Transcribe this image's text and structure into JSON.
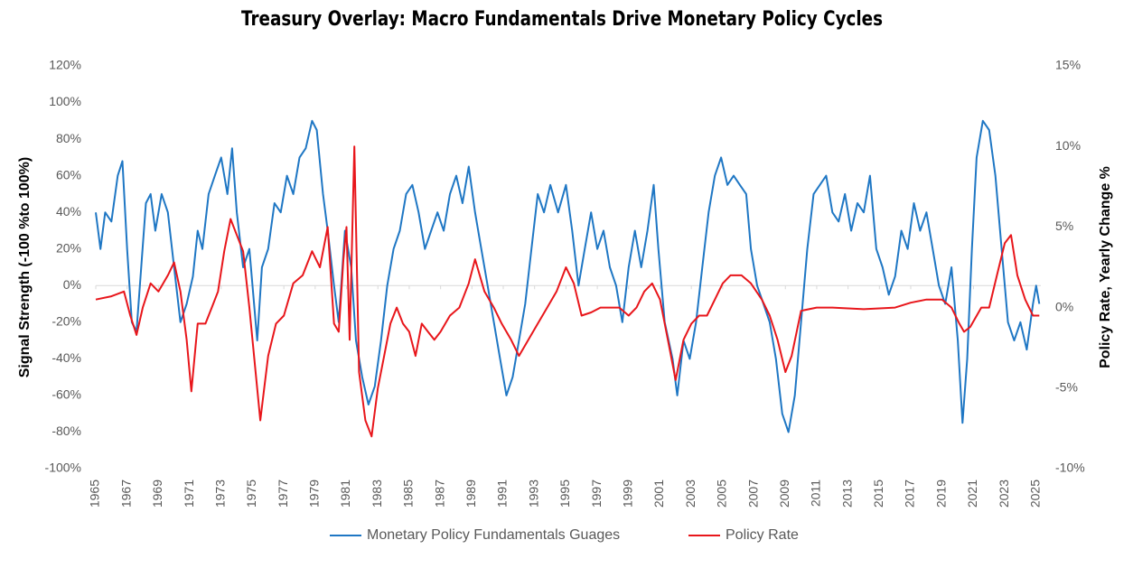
{
  "chart_data": {
    "type": "line",
    "title": "Treasury Overlay: Macro Fundamentals Drive Monetary Policy Cycles",
    "ylabel": "Signal Strength (-100 %to 100%)",
    "y2label": "Policy Rate, Yearly Change %",
    "xlim": [
      1965,
      2025.3
    ],
    "xticks": [
      1965,
      1967,
      1969,
      1971,
      1973,
      1975,
      1977,
      1979,
      1981,
      1983,
      1985,
      1987,
      1989,
      1991,
      1993,
      1995,
      1997,
      1999,
      2001,
      2003,
      2005,
      2007,
      2009,
      2011,
      2013,
      2015,
      2017,
      2019,
      2021,
      2023,
      2025
    ],
    "ylim": [
      -100,
      120
    ],
    "yticks": [
      {
        "value": -100,
        "label": "-100%"
      },
      {
        "value": -80,
        "label": "-80%"
      },
      {
        "value": -60,
        "label": "-60%"
      },
      {
        "value": -40,
        "label": "-40%"
      },
      {
        "value": -20,
        "label": "-20%"
      },
      {
        "value": 0,
        "label": "0%"
      },
      {
        "value": 20,
        "label": "20%"
      },
      {
        "value": 40,
        "label": "40%"
      },
      {
        "value": 60,
        "label": "60%"
      },
      {
        "value": 80,
        "label": "80%"
      },
      {
        "value": 100,
        "label": "100%"
      },
      {
        "value": 120,
        "label": "120%"
      }
    ],
    "y2lim": [
      -10,
      15
    ],
    "y2ticks": [
      {
        "value": -10,
        "label": "-10%"
      },
      {
        "value": -5,
        "label": "-5%"
      },
      {
        "value": 0,
        "label": "0%"
      },
      {
        "value": 5,
        "label": "5%"
      },
      {
        "value": 10,
        "label": "10%"
      },
      {
        "value": 15,
        "label": "15%"
      }
    ],
    "grid": false,
    "legend": "bottom",
    "series": [
      {
        "name": "Monetary Policy Fundamentals Guages",
        "color": "#1f77c4",
        "axis": "y",
        "x": [
          1965.0,
          1965.3,
          1965.6,
          1966.0,
          1966.4,
          1966.7,
          1967.0,
          1967.3,
          1967.6,
          1967.9,
          1968.2,
          1968.5,
          1968.8,
          1969.2,
          1969.6,
          1970.0,
          1970.4,
          1970.8,
          1971.2,
          1971.5,
          1971.8,
          1972.2,
          1972.6,
          1973.0,
          1973.4,
          1973.7,
          1974.0,
          1974.4,
          1974.8,
          1975.1,
          1975.3,
          1975.6,
          1976.0,
          1976.4,
          1976.8,
          1977.2,
          1977.6,
          1978.0,
          1978.4,
          1978.8,
          1979.1,
          1979.5,
          1979.8,
          1980.2,
          1980.5,
          1980.9,
          1981.3,
          1981.6,
          1982.0,
          1982.4,
          1982.8,
          1983.2,
          1983.6,
          1984.0,
          1984.4,
          1984.8,
          1985.2,
          1985.6,
          1986.0,
          1986.4,
          1986.8,
          1987.2,
          1987.6,
          1988.0,
          1988.4,
          1988.8,
          1989.2,
          1989.6,
          1990.0,
          1990.4,
          1990.8,
          1991.2,
          1991.6,
          1992.0,
          1992.4,
          1992.8,
          1993.2,
          1993.6,
          1994.0,
          1994.5,
          1995.0,
          1995.4,
          1995.8,
          1996.2,
          1996.6,
          1997.0,
          1997.4,
          1997.8,
          1998.2,
          1998.6,
          1999.0,
          1999.4,
          1999.8,
          2000.2,
          2000.6,
          2000.9,
          2001.3,
          2001.8,
          2002.1,
          2002.5,
          2002.9,
          2003.3,
          2003.7,
          2004.1,
          2004.5,
          2004.9,
          2005.3,
          2005.7,
          2006.1,
          2006.5,
          2006.8,
          2007.2,
          2007.6,
          2008.0,
          2008.4,
          2008.8,
          2009.2,
          2009.6,
          2010.0,
          2010.4,
          2010.8,
          2011.2,
          2011.6,
          2012.0,
          2012.4,
          2012.8,
          2013.2,
          2013.6,
          2014.0,
          2014.4,
          2014.8,
          2015.2,
          2015.6,
          2016.0,
          2016.4,
          2016.8,
          2017.2,
          2017.6,
          2018.0,
          2018.4,
          2018.8,
          2019.2,
          2019.6,
          2020.0,
          2020.3,
          2020.6,
          2020.9,
          2021.2,
          2021.6,
          2022.0,
          2022.4,
          2022.8,
          2023.2,
          2023.6,
          2024.0,
          2024.4,
          2024.8,
          2025.0,
          2025.2
        ],
        "values": [
          40,
          20,
          40,
          35,
          60,
          68,
          20,
          -20,
          -25,
          10,
          45,
          50,
          30,
          50,
          40,
          10,
          -20,
          -10,
          5,
          30,
          20,
          50,
          60,
          70,
          50,
          75,
          40,
          10,
          20,
          -10,
          -30,
          10,
          20,
          45,
          40,
          60,
          50,
          70,
          75,
          90,
          85,
          50,
          30,
          0,
          -20,
          30,
          10,
          -30,
          -50,
          -65,
          -55,
          -30,
          0,
          20,
          30,
          50,
          55,
          40,
          20,
          30,
          40,
          30,
          50,
          60,
          45,
          65,
          40,
          20,
          0,
          -20,
          -40,
          -60,
          -50,
          -30,
          -10,
          20,
          50,
          40,
          55,
          40,
          55,
          30,
          0,
          20,
          40,
          20,
          30,
          10,
          0,
          -20,
          10,
          30,
          10,
          30,
          55,
          20,
          -20,
          -40,
          -60,
          -30,
          -40,
          -20,
          10,
          40,
          60,
          70,
          55,
          60,
          55,
          50,
          20,
          0,
          -10,
          -20,
          -40,
          -70,
          -80,
          -60,
          -20,
          20,
          50,
          55,
          60,
          40,
          35,
          50,
          30,
          45,
          40,
          60,
          20,
          10,
          -5,
          5,
          30,
          20,
          45,
          30,
          40,
          20,
          0,
          -10,
          10,
          -30,
          -75,
          -40,
          20,
          70,
          90,
          85,
          60,
          20,
          -20,
          -30,
          -20,
          -35,
          -10,
          0,
          -10
        ]
      },
      {
        "name": "Policy Rate",
        "color": "#e8161b",
        "axis": "y2",
        "x": [
          1965.0,
          1966.0,
          1966.8,
          1967.2,
          1967.6,
          1968.0,
          1968.5,
          1969.0,
          1969.6,
          1970.0,
          1970.4,
          1970.8,
          1971.1,
          1971.5,
          1972.0,
          1972.4,
          1972.8,
          1973.2,
          1973.6,
          1974.0,
          1974.4,
          1974.8,
          1975.2,
          1975.5,
          1976.0,
          1976.5,
          1977.0,
          1977.6,
          1978.2,
          1978.8,
          1979.3,
          1979.8,
          1980.2,
          1980.5,
          1980.8,
          1981.0,
          1981.2,
          1981.5,
          1981.8,
          1982.2,
          1982.6,
          1983.0,
          1983.4,
          1983.8,
          1984.2,
          1984.6,
          1985.0,
          1985.4,
          1985.8,
          1986.2,
          1986.6,
          1987.0,
          1987.6,
          1988.2,
          1988.8,
          1989.2,
          1989.8,
          1990.4,
          1990.9,
          1991.5,
          1992.0,
          1992.6,
          1993.2,
          1993.8,
          1994.4,
          1995.0,
          1995.5,
          1996.0,
          1996.6,
          1997.2,
          1997.8,
          1998.4,
          1999.0,
          1999.5,
          2000.0,
          2000.5,
          2001.0,
          2001.5,
          2002.0,
          2002.5,
          2003.0,
          2003.5,
          2004.0,
          2004.5,
          2005.0,
          2005.5,
          2006.2,
          2006.8,
          2007.5,
          2008.0,
          2008.5,
          2009.0,
          2009.4,
          2010.0,
          2011.0,
          2012.0,
          2014.0,
          2016.0,
          2017.0,
          2018.0,
          2019.0,
          2019.6,
          2020.1,
          2020.4,
          2020.8,
          2021.5,
          2022.0,
          2022.5,
          2023.0,
          2023.4,
          2023.8,
          2024.3,
          2024.8,
          2025.2
        ],
        "values": [
          0.5,
          0.7,
          1.0,
          -0.5,
          -1.7,
          0,
          1.5,
          1.0,
          2.0,
          2.8,
          1.0,
          -2.0,
          -5.2,
          -1.0,
          -1.0,
          0,
          1.0,
          3.5,
          5.5,
          4.5,
          3.5,
          0,
          -4.0,
          -7.0,
          -3.0,
          -1.0,
          -0.5,
          1.5,
          2.0,
          3.5,
          2.5,
          5.0,
          -1.0,
          -1.5,
          3.0,
          5.0,
          -2.0,
          10.0,
          -4.0,
          -7.0,
          -8.0,
          -5.0,
          -3.0,
          -1.0,
          0,
          -1.0,
          -1.5,
          -3.0,
          -1.0,
          -1.5,
          -2.0,
          -1.5,
          -0.5,
          0,
          1.5,
          3.0,
          1.0,
          0,
          -1.0,
          -2.0,
          -3.0,
          -2.0,
          -1.0,
          0,
          1.0,
          2.5,
          1.5,
          -0.5,
          -0.3,
          0,
          0,
          0,
          -0.5,
          0,
          1.0,
          1.5,
          0.5,
          -2.0,
          -4.5,
          -2.0,
          -1.0,
          -0.5,
          -0.5,
          0.5,
          1.5,
          2.0,
          2.0,
          1.5,
          0.5,
          -0.5,
          -2.0,
          -4.0,
          -3.0,
          -0.2,
          0,
          0,
          -0.1,
          0,
          0.3,
          0.5,
          0.5,
          0,
          -1.0,
          -1.5,
          -1.2,
          0,
          0,
          2.0,
          4.0,
          4.5,
          2.0,
          0.5,
          -0.5,
          -0.5
        ]
      }
    ]
  }
}
